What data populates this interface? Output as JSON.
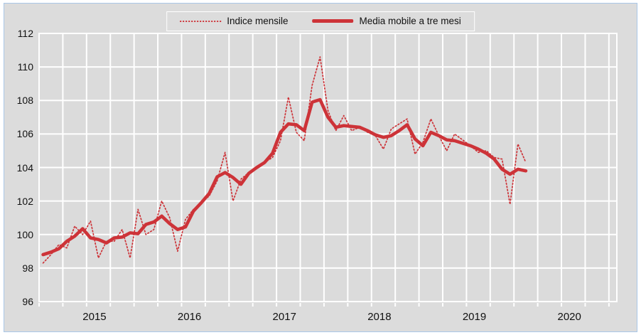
{
  "figure": {
    "background_color": "#dcdcdc",
    "border_color": "#a9c7e7",
    "plot_background_color": "#dbdbdb",
    "gridline_color": "#ffffff",
    "accent_color": "#cd3338"
  },
  "legend": {
    "items": [
      {
        "label": "Indice mensile",
        "style": "dotted"
      },
      {
        "label": "Media mobile a tre mesi",
        "style": "solid"
      }
    ]
  },
  "chart_data": {
    "type": "line",
    "title": "",
    "xlabel": "",
    "ylabel": "",
    "ylim": [
      96,
      112
    ],
    "y_ticks": [
      96,
      98,
      100,
      102,
      104,
      106,
      108,
      110,
      112
    ],
    "grid": true,
    "x_gridline_interval_months": 3,
    "x_axis_total_month_slots": 73,
    "x_axis_span": "2014-12 to 2020-12 (axis extends beyond last data point)",
    "x_year_labels": [
      "2015",
      "2016",
      "2017",
      "2018",
      "2019",
      "2020"
    ],
    "legend_position": "top-center",
    "months": [
      "2014-12",
      "2015-01",
      "2015-02",
      "2015-03",
      "2015-04",
      "2015-05",
      "2015-06",
      "2015-07",
      "2015-08",
      "2015-09",
      "2015-10",
      "2015-11",
      "2015-12",
      "2016-01",
      "2016-02",
      "2016-03",
      "2016-04",
      "2016-05",
      "2016-06",
      "2016-07",
      "2016-08",
      "2016-09",
      "2016-10",
      "2016-11",
      "2016-12",
      "2017-01",
      "2017-02",
      "2017-03",
      "2017-04",
      "2017-05",
      "2017-06",
      "2017-07",
      "2017-08",
      "2017-09",
      "2017-10",
      "2017-11",
      "2017-12",
      "2018-01",
      "2018-02",
      "2018-03",
      "2018-04",
      "2018-05",
      "2018-06",
      "2018-07",
      "2018-08",
      "2018-09",
      "2018-10",
      "2018-11",
      "2018-12",
      "2019-01",
      "2019-02",
      "2019-03",
      "2019-04",
      "2019-05",
      "2019-06",
      "2019-07",
      "2019-08",
      "2019-09",
      "2019-10",
      "2019-11",
      "2019-12",
      "2020-01"
    ],
    "series": [
      {
        "name": "Indice mensile",
        "line_style": "dotted",
        "color": "#cd3338",
        "values": [
          98.3,
          98.8,
          99.4,
          99.2,
          100.5,
          100.0,
          100.8,
          98.6,
          99.6,
          99.6,
          100.3,
          98.6,
          101.5,
          100.0,
          100.3,
          102.0,
          101.0,
          99.0,
          100.9,
          101.5,
          101.9,
          102.3,
          103.2,
          104.9,
          102.0,
          103.3,
          103.7,
          104.0,
          104.3,
          104.6,
          105.6,
          108.2,
          106.1,
          105.6,
          108.9,
          110.6,
          107.4,
          106.2,
          107.1,
          106.2,
          106.4,
          106.1,
          105.9,
          105.1,
          106.3,
          106.6,
          106.9,
          104.8,
          105.5,
          106.9,
          105.9,
          105.0,
          106.0,
          105.65,
          105.3,
          104.9,
          105.0,
          104.6,
          104.5,
          101.8,
          105.4,
          104.3
        ]
      },
      {
        "name": "Media mobile a tre mesi",
        "line_style": "solid",
        "color": "#cd3338",
        "values": [
          98.8,
          98.95,
          99.15,
          99.6,
          99.9,
          100.35,
          99.8,
          99.7,
          99.5,
          99.8,
          99.85,
          100.1,
          100.05,
          100.6,
          100.75,
          101.1,
          100.65,
          100.3,
          100.45,
          101.4,
          101.9,
          102.45,
          103.45,
          103.7,
          103.4,
          103.0,
          103.65,
          104.0,
          104.3,
          104.85,
          106.1,
          106.6,
          106.55,
          106.2,
          107.9,
          108.05,
          107.0,
          106.4,
          106.5,
          106.45,
          106.4,
          106.2,
          105.95,
          105.8,
          105.9,
          106.2,
          106.55,
          105.7,
          105.3,
          106.1,
          105.9,
          105.65,
          105.6,
          105.45,
          105.3,
          105.1,
          104.85,
          104.5,
          103.9,
          103.6,
          103.9,
          103.8
        ]
      }
    ]
  }
}
